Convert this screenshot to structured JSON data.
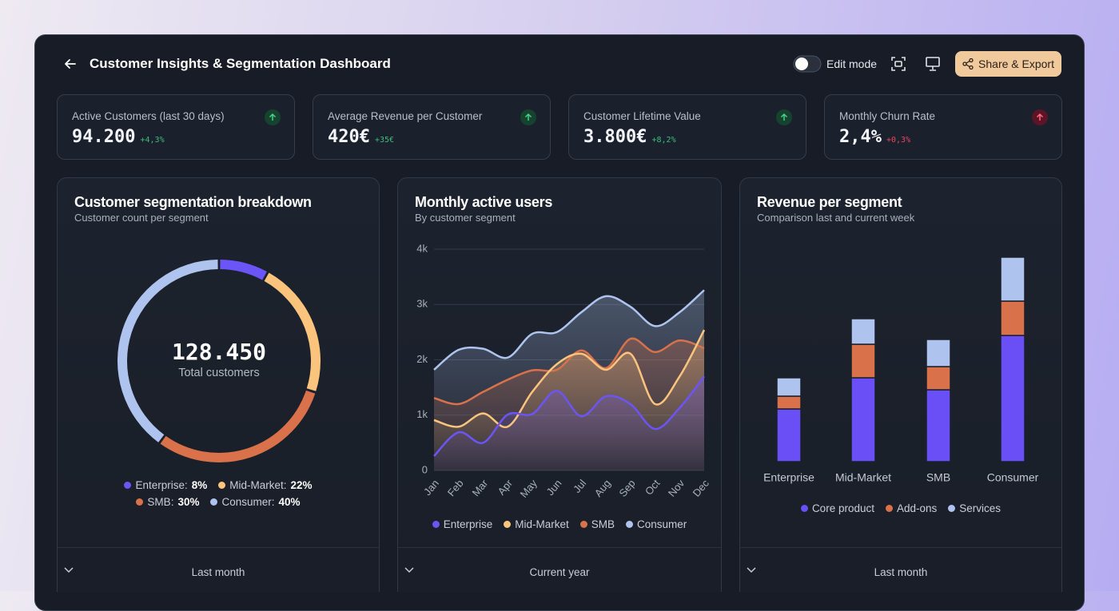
{
  "header": {
    "title": "Customer Insights & Segmentation Dashboard",
    "edit_mode": "Edit mode",
    "share_button": "Share & Export"
  },
  "kpis": [
    {
      "label": "Active Customers (last 30 days)",
      "value": "94.200",
      "change": "+4,3%",
      "status": "good"
    },
    {
      "label": "Average Revenue per Customer",
      "value": "420€",
      "change": "+35€",
      "status": "good"
    },
    {
      "label": "Customer Lifetime Value",
      "value": "3.800€",
      "change": "+8,2%",
      "status": "good"
    },
    {
      "label": "Monthly Churn Rate",
      "value": "2,4%",
      "change": "+0,3%",
      "status": "bad"
    }
  ],
  "chart_data": [
    {
      "type": "pie",
      "title": "Customer segmentation breakdown",
      "subtitle": "Customer count per segment",
      "center_value": "128.450",
      "center_label": "Total customers",
      "categories": [
        "Enterprise",
        "Mid-Market",
        "SMB",
        "Consumer"
      ],
      "values": [
        8,
        22,
        30,
        40
      ],
      "value_labels": [
        "8%",
        "22%",
        "30%",
        "40%"
      ],
      "colors": [
        "#6b55f6",
        "#fbc47c",
        "#d9714b",
        "#aec4ee"
      ],
      "filter": "Last month"
    },
    {
      "type": "area",
      "title": "Monthly active users",
      "subtitle": "By customer segment",
      "categories": [
        "Jan",
        "Feb",
        "Mar",
        "Apr",
        "May",
        "Jun",
        "Jul",
        "Aug",
        "Sep",
        "Oct",
        "Nov",
        "Dec"
      ],
      "series": [
        {
          "name": "Enterprise",
          "color": "#6b55f6",
          "values": [
            260,
            690,
            500,
            1010,
            1020,
            1440,
            980,
            1340,
            1200,
            750,
            1130,
            1700
          ]
        },
        {
          "name": "Mid-Market",
          "color": "#fbc47c",
          "values": [
            910,
            790,
            1030,
            790,
            1420,
            1920,
            2110,
            1820,
            2110,
            1200,
            1700,
            2540
          ]
        },
        {
          "name": "SMB",
          "color": "#d9714b",
          "values": [
            1310,
            1200,
            1420,
            1640,
            1810,
            1820,
            2170,
            1850,
            2380,
            2140,
            2350,
            2210
          ]
        },
        {
          "name": "Consumer",
          "color": "#aec4ee",
          "values": [
            1820,
            2180,
            2200,
            2040,
            2470,
            2500,
            2860,
            3150,
            2960,
            2610,
            2860,
            3260
          ]
        }
      ],
      "ylim": [
        0,
        4000
      ],
      "yticks": [
        0,
        {
          "value": 1000,
          "label": "1k"
        },
        {
          "value": 2000,
          "label": "2k"
        },
        {
          "value": 3000,
          "label": "3k"
        },
        {
          "value": 4000,
          "label": "4k"
        }
      ],
      "grid": true,
      "filter": "Current year"
    },
    {
      "type": "bar",
      "stacked": true,
      "title": "Revenue per segment",
      "subtitle": "Comparison last and current week",
      "categories": [
        "Enterprise",
        "Mid-Market",
        "SMB",
        "Consumer"
      ],
      "series": [
        {
          "name": "Core product",
          "color": "#6a4ff7",
          "values": [
            66,
            105,
            90,
            158
          ]
        },
        {
          "name": "Add-ons",
          "color": "#d9714b",
          "values": [
            16,
            42,
            29,
            43
          ]
        },
        {
          "name": "Services",
          "color": "#aec4ee",
          "values": [
            23,
            32,
            34,
            55
          ]
        }
      ],
      "filter": "Last month"
    }
  ]
}
